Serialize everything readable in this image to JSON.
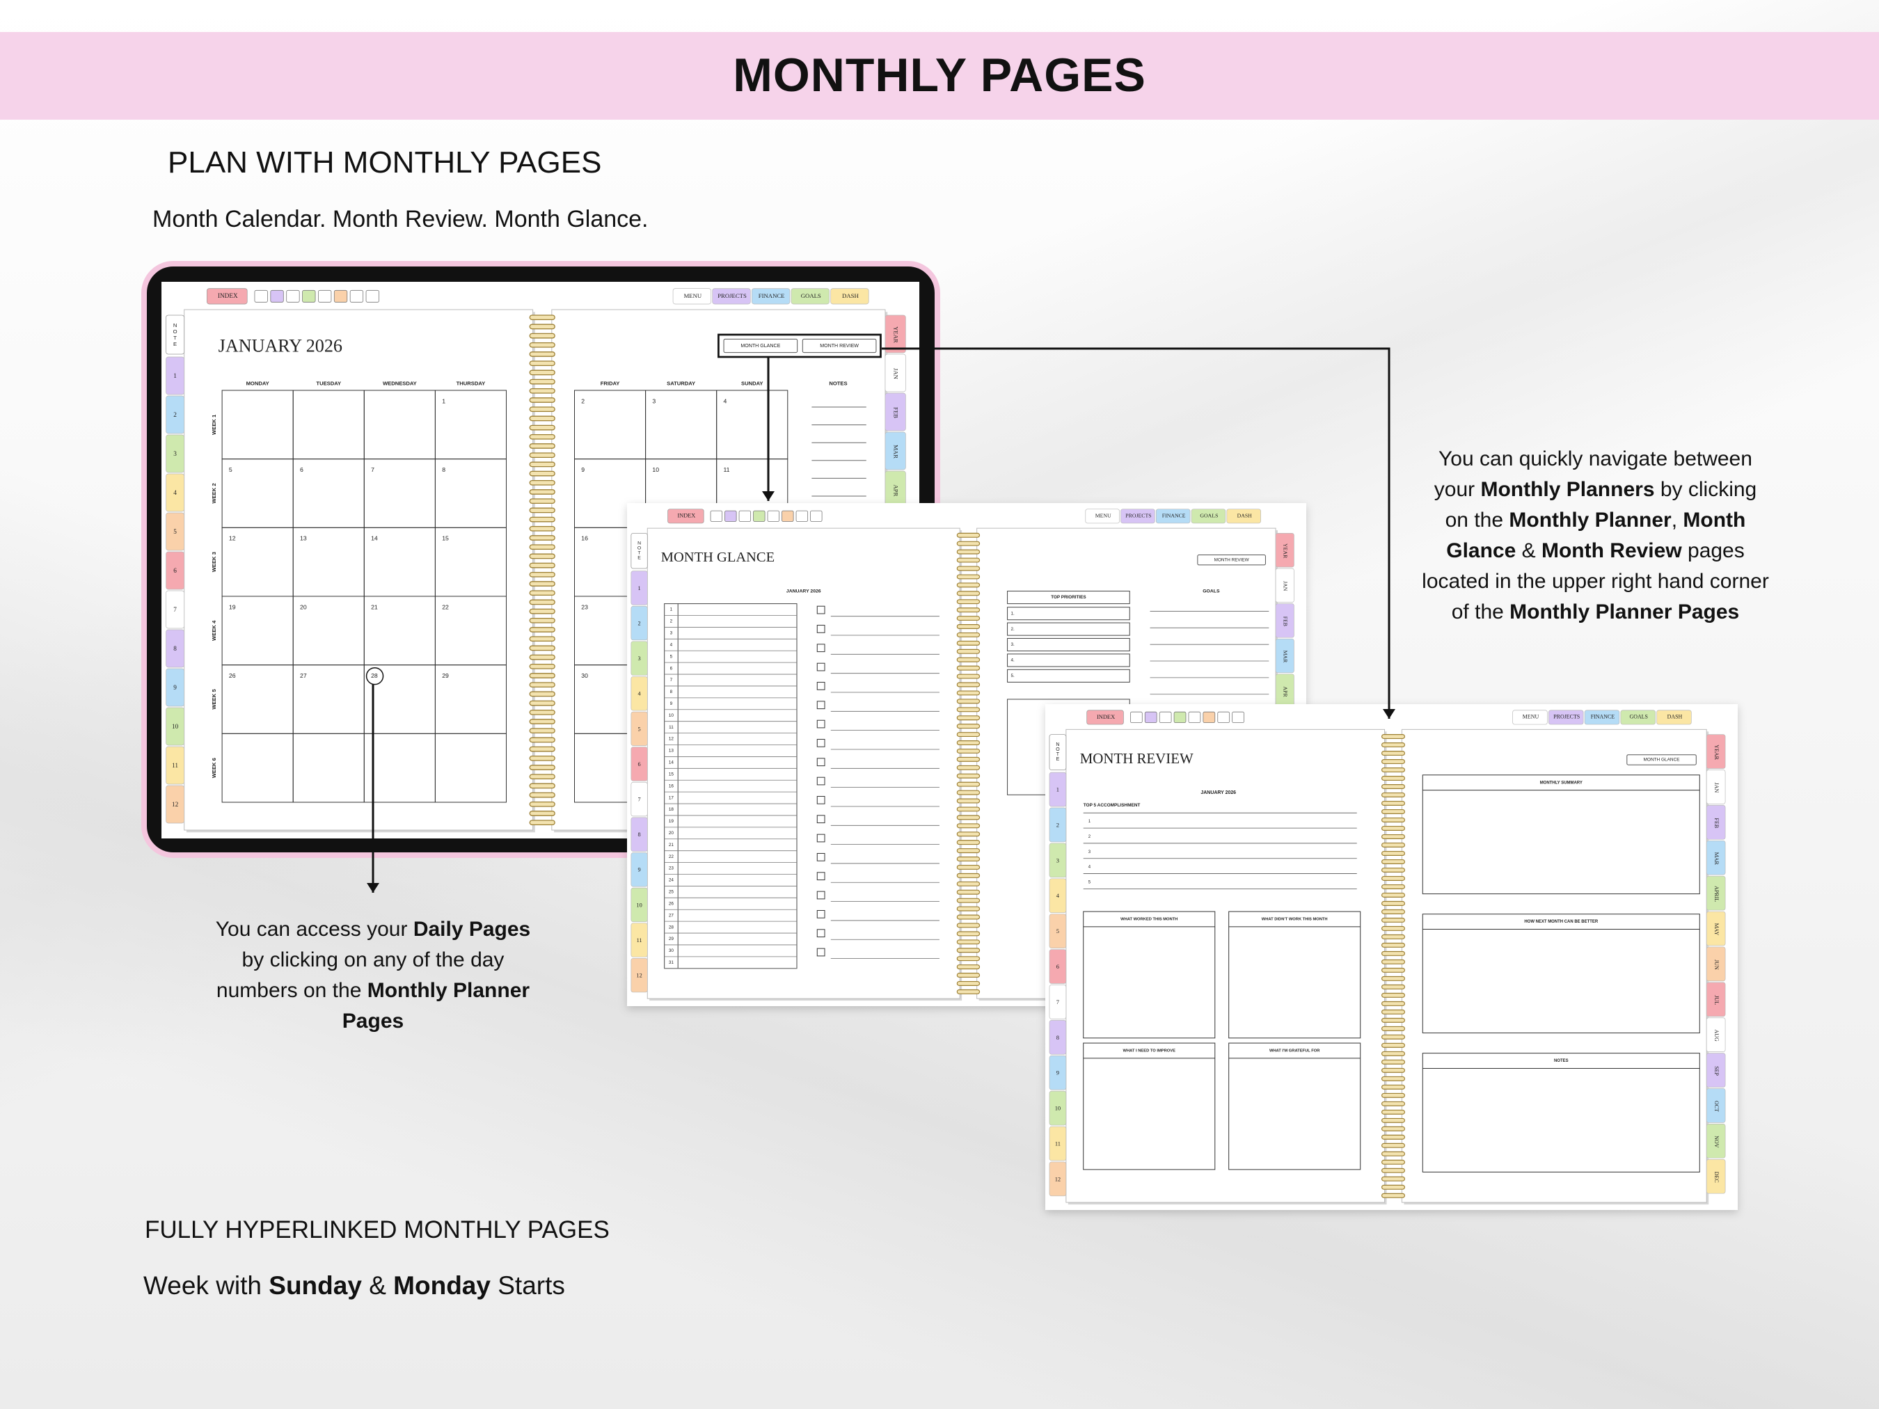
{
  "header": {
    "title": "MONTHLY PAGES"
  },
  "intro": {
    "heading": "PLAN WITH MONTHLY PAGES",
    "subheading": "Month Calendar. Month Review. Month Glance."
  },
  "tab_colors": [
    "#d7c4f5",
    "#b5dcf6",
    "#cfe9ae",
    "#fbe6a4",
    "#fad1aa",
    "#f5a9b0",
    "#ffffff"
  ],
  "calendar_spread": {
    "type": "calendar",
    "nav_left": [
      "INDEX"
    ],
    "nav_right": [
      "MENU",
      "PROJECTS",
      "FINANCE",
      "GOALS",
      "DASH"
    ],
    "note_tab": "NOTE",
    "month_tabs": [
      "1",
      "2",
      "3",
      "4",
      "5",
      "6",
      "7",
      "8",
      "9",
      "10",
      "11",
      "12"
    ],
    "year_tabs": [
      "YEAR",
      "JAN",
      "FEB",
      "MAR",
      "APR"
    ],
    "title": "JANUARY 2026",
    "buttons": [
      "MONTH GLANCE",
      "MONTH REVIEW"
    ],
    "weekdays": [
      "MONDAY",
      "TUESDAY",
      "WEDNESDAY",
      "THURSDAY",
      "FRIDAY",
      "SATURDAY",
      "SUNDAY"
    ],
    "weeks": [
      "WEEK 1",
      "WEEK 2",
      "WEEK 3",
      "WEEK 4",
      "WEEK 5",
      "WEEK 6"
    ],
    "days": [
      [
        null,
        null,
        null,
        "1",
        "2",
        "3",
        "4"
      ],
      [
        "5",
        "6",
        "7",
        "8",
        "9",
        "10",
        "11"
      ],
      [
        "12",
        "13",
        "14",
        "15",
        "16",
        null,
        null
      ],
      [
        "19",
        "20",
        "21",
        "22",
        "23",
        null,
        null
      ],
      [
        "26",
        "27",
        "28",
        "29",
        "30",
        null,
        null
      ],
      [
        null,
        null,
        null,
        null,
        null,
        null,
        null
      ]
    ],
    "notes_label": "NOTES"
  },
  "glance_spread": {
    "type": "glance",
    "nav_left": [
      "INDEX"
    ],
    "nav_right": [
      "MENU",
      "PROJECTS",
      "FINANCE",
      "GOALS",
      "DASH"
    ],
    "note_tab": "NOTE",
    "month_tabs": [
      "1",
      "2",
      "3",
      "4",
      "5",
      "6",
      "7",
      "8",
      "9",
      "10",
      "11",
      "12"
    ],
    "year_tabs": [
      "YEAR",
      "JAN",
      "FEB",
      "MAR",
      "APR"
    ],
    "title": "MONTH GLANCE",
    "month": "JANUARY 2026",
    "rows": [
      "1",
      "2",
      "3",
      "4",
      "5",
      "6",
      "7",
      "8",
      "9",
      "10",
      "11",
      "12",
      "13",
      "14",
      "15",
      "16",
      "17",
      "18",
      "19",
      "20",
      "21",
      "22",
      "23",
      "24",
      "25",
      "26",
      "27",
      "28",
      "29",
      "30",
      "31"
    ],
    "button": "MONTH REVIEW",
    "priorities_label": "TOP PRIORITIES",
    "priorities": [
      "1.",
      "2.",
      "3.",
      "4.",
      "5."
    ],
    "goals_label": "GOALS"
  },
  "review_spread": {
    "type": "review",
    "nav_left": [
      "INDEX"
    ],
    "nav_right": [
      "MENU",
      "PROJECTS",
      "FINANCE",
      "GOALS",
      "DASH"
    ],
    "note_tab": "NOTE",
    "month_tabs": [
      "1",
      "2",
      "3",
      "4",
      "5",
      "6",
      "7",
      "8",
      "9",
      "10",
      "11",
      "12"
    ],
    "year_tabs": [
      "YEAR",
      "JAN",
      "FEB",
      "MAR",
      "APRIL",
      "MAY",
      "JUN",
      "JUL",
      "AUG",
      "SEP",
      "OCT",
      "NOV",
      "DEC"
    ],
    "title": "MONTH REVIEW",
    "month": "JANUARY 2026",
    "accomplishments_label": "TOP 5 ACCOMPLISHMENT",
    "accomplishments": [
      "1",
      "2",
      "3",
      "4",
      "5"
    ],
    "reflection_boxes": [
      "WHAT WORKED THIS MONTH",
      "WHAT DIDN'T WORK THIS MONTH",
      "WHAT I NEED TO IMPROVE",
      "WHAT I'M GRATEFUL FOR"
    ],
    "button": "MONTH GLANCE",
    "summary_boxes": [
      "MONTHLY SUMMARY",
      "HOW NEXT MONTH CAN BE BETTER",
      "NOTES"
    ]
  },
  "annotations": {
    "daily": [
      {
        "text": "You can access your ",
        "bold": false
      },
      {
        "text": "Daily Pages",
        "bold": true
      },
      {
        "text": " by clicking on any of the day numbers on the ",
        "bold": false
      },
      {
        "text": "Monthly Planner Pages",
        "bold": true
      }
    ],
    "navigation": [
      {
        "text": "You can quickly navigate between your ",
        "bold": false
      },
      {
        "text": "Monthly Planners",
        "bold": true
      },
      {
        "text": " by clicking on the ",
        "bold": false
      },
      {
        "text": "Monthly Planner",
        "bold": true
      },
      {
        "text": ", ",
        "bold": false
      },
      {
        "text": "Month Glance",
        "bold": true
      },
      {
        "text": " & ",
        "bold": false
      },
      {
        "text": "Month Review",
        "bold": true
      },
      {
        "text": " pages located in the upper right hand corner of the ",
        "bold": false
      },
      {
        "text": "Monthly Planner Pages",
        "bold": true
      }
    ]
  },
  "footer": {
    "heading": "FULLY HYPERLINKED MONTHLY PAGES",
    "note": [
      {
        "text": "Week with ",
        "bold": false
      },
      {
        "text": "Sunday",
        "bold": true
      },
      {
        "text": " & ",
        "bold": false
      },
      {
        "text": "Monday",
        "bold": true
      },
      {
        "text": " Starts",
        "bold": false
      }
    ]
  }
}
